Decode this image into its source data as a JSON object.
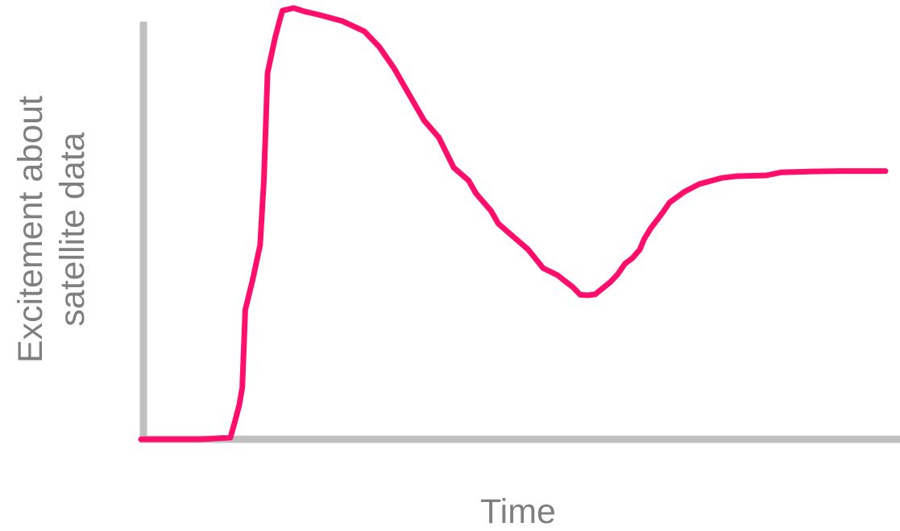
{
  "chart_data": {
    "type": "line",
    "title": "",
    "xlabel": "Time",
    "ylabel_lines": [
      "Excitement about",
      "satellite data"
    ],
    "xlim": [
      0,
      100
    ],
    "ylim": [
      0,
      100
    ],
    "grid": false,
    "legend": "none",
    "colors": {
      "line": "#ff0f6b",
      "axis": "#bfbfbf",
      "label": "#7f7f7f"
    },
    "series": [
      {
        "x": [
          0,
          4,
          8,
          12,
          12.6,
          13.2,
          13.6,
          14,
          15,
          16,
          16.5,
          17,
          18,
          18.6,
          19,
          20.5,
          22,
          24,
          27,
          30,
          32,
          34,
          35,
          36,
          37,
          38,
          40,
          42,
          44,
          45,
          47,
          48,
          50,
          52,
          54,
          56,
          57,
          58,
          59,
          60,
          61,
          62,
          63,
          64,
          65,
          66,
          67,
          67.6,
          68.5,
          70,
          71,
          73,
          75,
          78,
          80,
          84,
          86,
          90,
          94,
          98,
          100
        ],
        "y": [
          0,
          0,
          0,
          0.4,
          4,
          8,
          12,
          30,
          37,
          45,
          60,
          85,
          93,
          97,
          99.4,
          100,
          99.2,
          98.4,
          97,
          94.6,
          91,
          86,
          83,
          80,
          77,
          74,
          70,
          63,
          60,
          57,
          53,
          50,
          47,
          44,
          39.7,
          38,
          36.6,
          35.3,
          33.5,
          33.4,
          33.6,
          35,
          36.4,
          38.2,
          40.7,
          42,
          44,
          46.5,
          49,
          52.4,
          54.9,
          57.4,
          59.2,
          60.6,
          61,
          61.2,
          61.9,
          62.1,
          62.2,
          62.2,
          62.2
        ]
      }
    ]
  }
}
